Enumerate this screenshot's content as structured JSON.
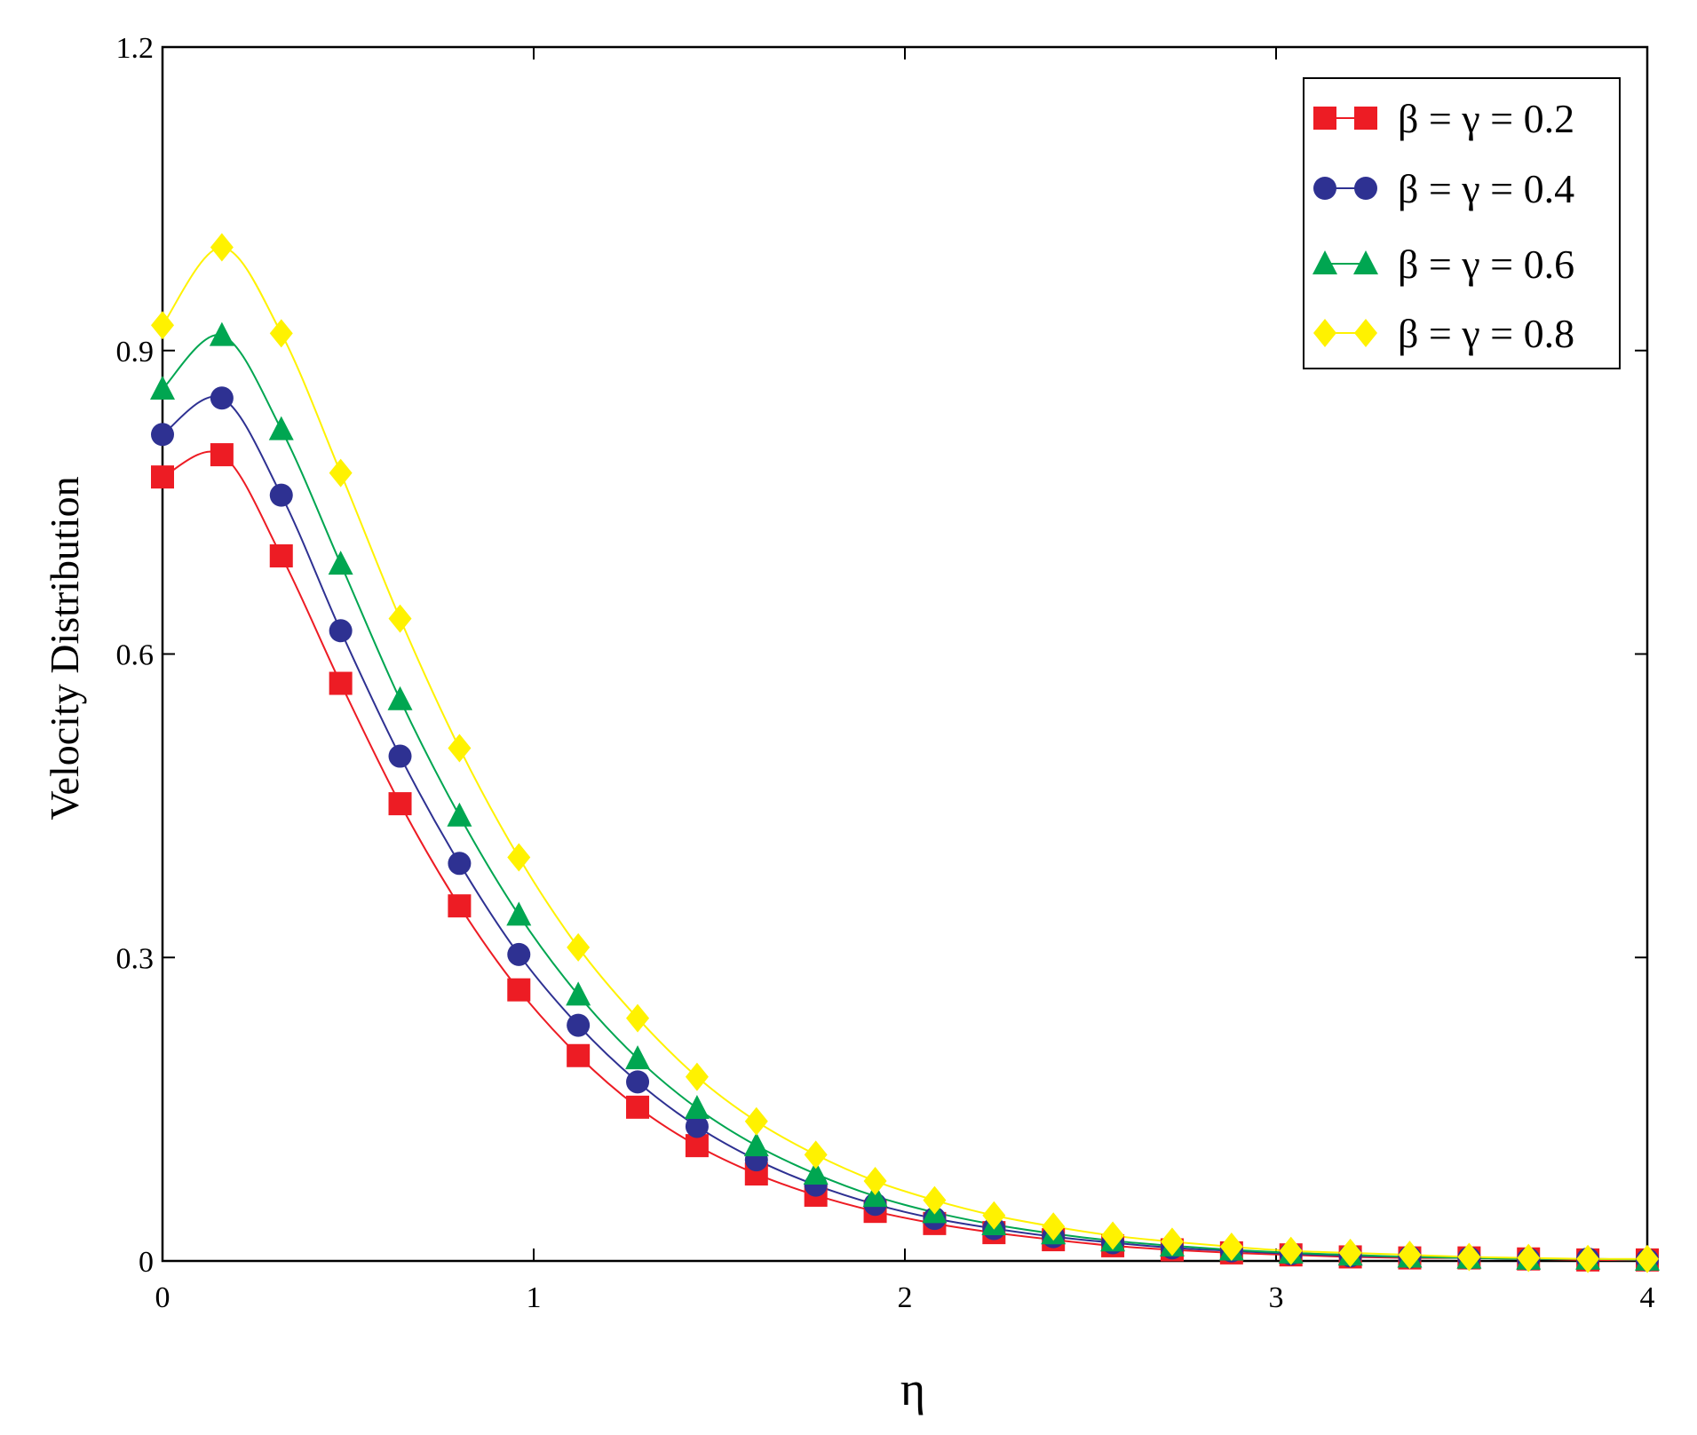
{
  "chart_data": {
    "type": "line",
    "title": "",
    "xlabel": "η",
    "ylabel": "Velocity Distribution",
    "xlim": [
      0,
      4
    ],
    "ylim": [
      0,
      1.2
    ],
    "xticks": [
      0,
      1,
      2,
      3,
      4
    ],
    "xtick_labels": [
      "0",
      "1",
      "2",
      "3",
      "4"
    ],
    "yticks": [
      0,
      0.3,
      0.6,
      0.9,
      1.2
    ],
    "ytick_labels": [
      "0",
      "0.3",
      "0.6",
      "0.9",
      "1.2"
    ],
    "grid": false,
    "legend_position": "top-right",
    "x": [
      0,
      0.16,
      0.32,
      0.48,
      0.64,
      0.8,
      0.96,
      1.12,
      1.28,
      1.44,
      1.6,
      1.76,
      1.92,
      2.08,
      2.24,
      2.4,
      2.56,
      2.72,
      2.88,
      3.04,
      3.2,
      3.36,
      3.52,
      3.68,
      3.84,
      4.0
    ],
    "series": [
      {
        "name": "β = γ = 0.2",
        "color": "#ed1c24",
        "marker": "square",
        "values": [
          0.775,
          0.797,
          0.697,
          0.571,
          0.452,
          0.351,
          0.268,
          0.203,
          0.152,
          0.114,
          0.086,
          0.065,
          0.049,
          0.037,
          0.028,
          0.021,
          0.015,
          0.011,
          0.008,
          0.006,
          0.004,
          0.003,
          0.003,
          0.002,
          0.001,
          0.001
        ]
      },
      {
        "name": "β = γ = 0.4",
        "color": "#2e3192",
        "marker": "circle",
        "values": [
          0.817,
          0.853,
          0.757,
          0.623,
          0.499,
          0.393,
          0.303,
          0.233,
          0.177,
          0.133,
          0.1,
          0.075,
          0.056,
          0.042,
          0.032,
          0.024,
          0.018,
          0.013,
          0.01,
          0.007,
          0.005,
          0.004,
          0.003,
          0.002,
          0.002,
          0.001
        ]
      },
      {
        "name": "β = γ = 0.6",
        "color": "#00a651",
        "marker": "triangle",
        "values": [
          0.862,
          0.915,
          0.822,
          0.689,
          0.555,
          0.44,
          0.342,
          0.263,
          0.2,
          0.151,
          0.114,
          0.086,
          0.064,
          0.048,
          0.036,
          0.027,
          0.02,
          0.015,
          0.011,
          0.008,
          0.006,
          0.004,
          0.003,
          0.002,
          0.002,
          0.001
        ]
      },
      {
        "name": "β = γ = 0.8",
        "color": "#fff200",
        "marker": "diamond",
        "values": [
          0.925,
          1.002,
          0.917,
          0.779,
          0.635,
          0.507,
          0.399,
          0.31,
          0.24,
          0.182,
          0.138,
          0.105,
          0.079,
          0.06,
          0.045,
          0.034,
          0.025,
          0.019,
          0.014,
          0.01,
          0.008,
          0.006,
          0.004,
          0.003,
          0.002,
          0.002
        ]
      }
    ]
  }
}
